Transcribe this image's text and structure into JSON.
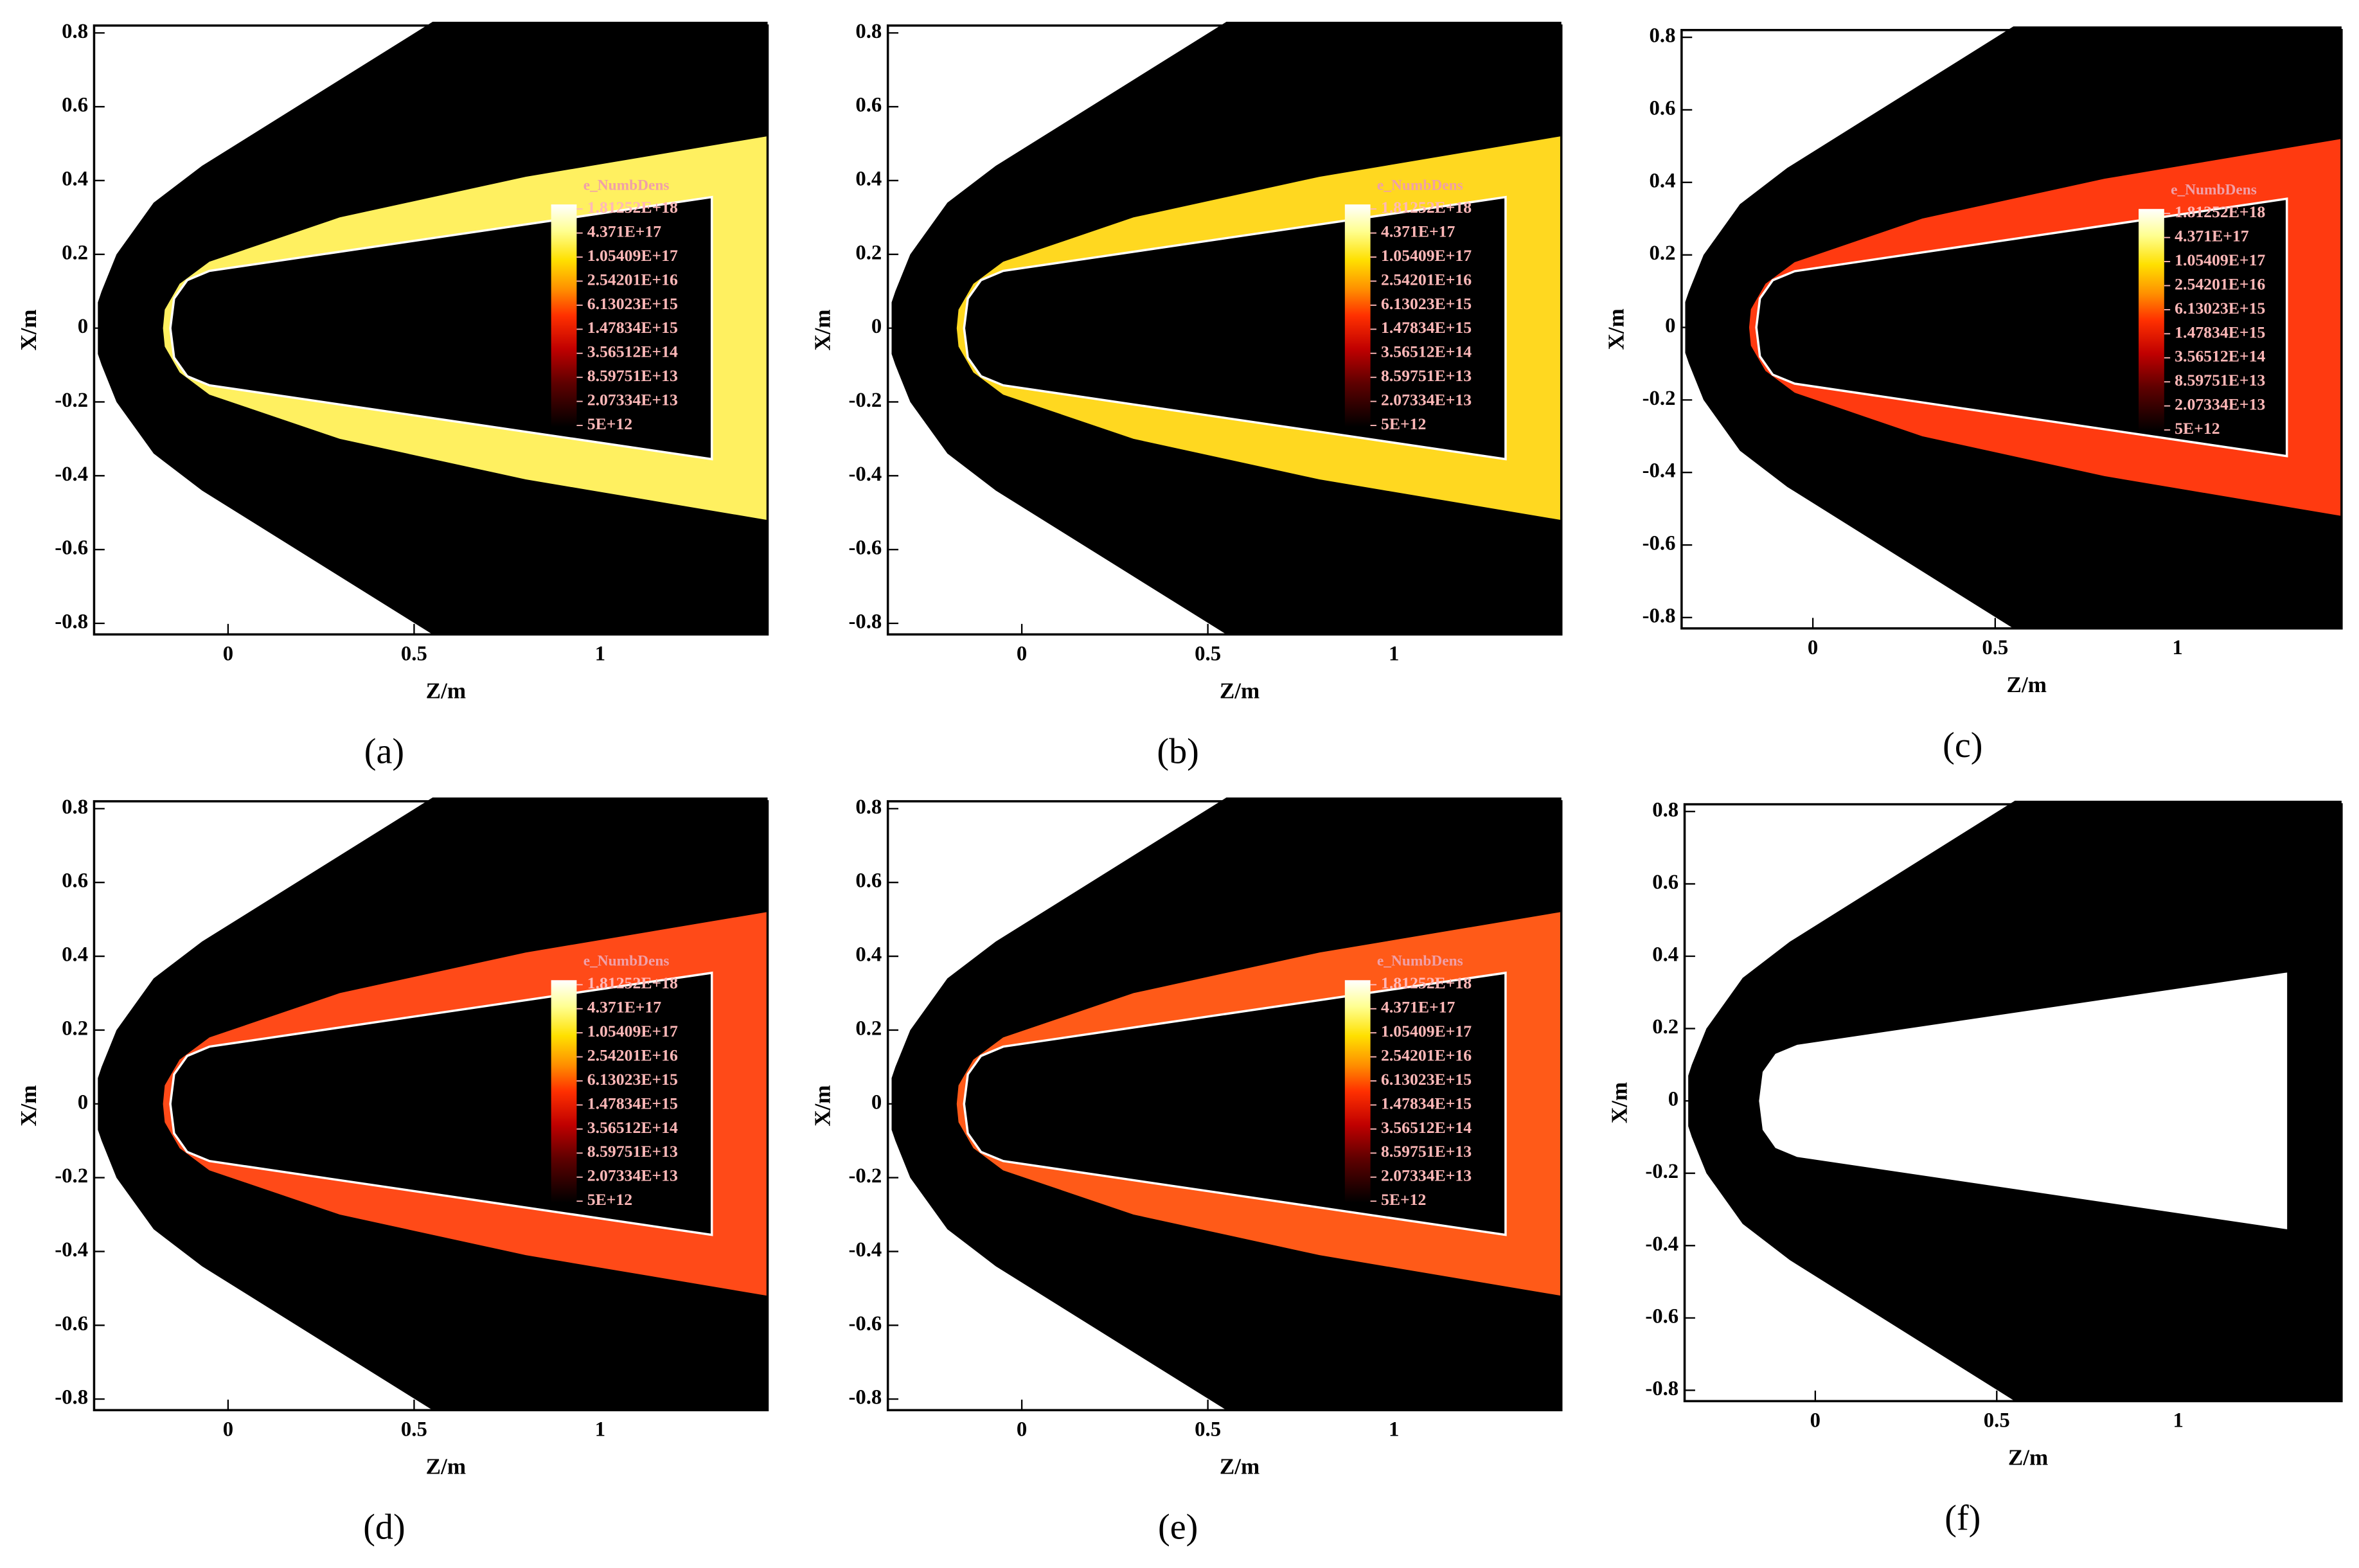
{
  "chart_data": [
    {
      "type": "contour",
      "panel_label": "(a)",
      "xlabel": "Z/m",
      "ylabel": "X/m",
      "xlim": [
        -0.36,
        1.45
      ],
      "ylim": [
        -0.83,
        0.82
      ],
      "xticks": [
        0,
        0.5,
        1
      ],
      "yticks": [
        -0.8,
        -0.6,
        -0.4,
        -0.2,
        0,
        0.2,
        0.4,
        0.6,
        0.8
      ],
      "color": "#fff060",
      "legend_title": "e_NumbDens",
      "levels": [
        {
          "value": 1.81252e+18,
          "label": "1.81252E+18"
        },
        {
          "value": 4.371e+17,
          "label": "4.371E+17"
        },
        {
          "value": 1.05409e+17,
          "label": "1.05409E+17"
        },
        {
          "value": 2.54201e+16,
          "label": "2.54201E+16"
        },
        {
          "value": 6130230000000000.0,
          "label": "6.13023E+15"
        },
        {
          "value": 1478340000000000.0,
          "label": "1.47834E+15"
        },
        {
          "value": 356512000000000.0,
          "label": "3.56512E+14"
        },
        {
          "value": 85975100000000.0,
          "label": "8.59751E+13"
        },
        {
          "value": 20733400000000.0,
          "label": "2.07334E+13"
        },
        {
          "value": 5000000000000.0,
          "label": "5E+12"
        }
      ]
    },
    {
      "type": "contour",
      "panel_label": "(b)",
      "xlabel": "Z/m",
      "ylabel": "X/m",
      "xlim": [
        -0.36,
        1.45
      ],
      "ylim": [
        -0.83,
        0.82
      ],
      "xticks": [
        0,
        0.5,
        1
      ],
      "yticks": [
        -0.8,
        -0.6,
        -0.4,
        -0.2,
        0,
        0.2,
        0.4,
        0.6,
        0.8
      ],
      "color": "#ffd820",
      "legend_title": "e_NumbDens",
      "levels": [
        {
          "value": 1.81252e+18,
          "label": "1.81252E+18"
        },
        {
          "value": 4.371e+17,
          "label": "4.371E+17"
        },
        {
          "value": 1.05409e+17,
          "label": "1.05409E+17"
        },
        {
          "value": 2.54201e+16,
          "label": "2.54201E+16"
        },
        {
          "value": 6130230000000000.0,
          "label": "6.13023E+15"
        },
        {
          "value": 1478340000000000.0,
          "label": "1.47834E+15"
        },
        {
          "value": 356512000000000.0,
          "label": "3.56512E+14"
        },
        {
          "value": 85975100000000.0,
          "label": "8.59751E+13"
        },
        {
          "value": 20733400000000.0,
          "label": "2.07334E+13"
        },
        {
          "value": 5000000000000.0,
          "label": "5E+12"
        }
      ]
    },
    {
      "type": "contour",
      "panel_label": "(c)",
      "xlabel": "Z/m",
      "ylabel": "X/m",
      "xlim": [
        -0.36,
        1.45
      ],
      "ylim": [
        -0.83,
        0.82
      ],
      "xticks": [
        0,
        0.5,
        1
      ],
      "yticks": [
        -0.8,
        -0.6,
        -0.4,
        -0.2,
        0,
        0.2,
        0.4,
        0.6,
        0.8
      ],
      "color": "#ff3a10",
      "legend_title": "e_NumbDens",
      "levels": [
        {
          "value": 1.81252e+18,
          "label": "1.81252E+18"
        },
        {
          "value": 4.371e+17,
          "label": "4.371E+17"
        },
        {
          "value": 1.05409e+17,
          "label": "1.05409E+17"
        },
        {
          "value": 2.54201e+16,
          "label": "2.54201E+16"
        },
        {
          "value": 6130230000000000.0,
          "label": "6.13023E+15"
        },
        {
          "value": 1478340000000000.0,
          "label": "1.47834E+15"
        },
        {
          "value": 356512000000000.0,
          "label": "3.56512E+14"
        },
        {
          "value": 85975100000000.0,
          "label": "8.59751E+13"
        },
        {
          "value": 20733400000000.0,
          "label": "2.07334E+13"
        },
        {
          "value": 5000000000000.0,
          "label": "5E+12"
        }
      ]
    },
    {
      "type": "contour",
      "panel_label": "(d)",
      "xlabel": "Z/m",
      "ylabel": "X/m",
      "xlim": [
        -0.36,
        1.45
      ],
      "ylim": [
        -0.83,
        0.82
      ],
      "xticks": [
        0,
        0.5,
        1
      ],
      "yticks": [
        -0.8,
        -0.6,
        -0.4,
        -0.2,
        0,
        0.2,
        0.4,
        0.6,
        0.8
      ],
      "color": "#ff4a18",
      "legend_title": "e_NumbDens",
      "levels": [
        {
          "value": 1.81252e+18,
          "label": "1.81252E+18"
        },
        {
          "value": 4.371e+17,
          "label": "4.371E+17"
        },
        {
          "value": 1.05409e+17,
          "label": "1.05409E+17"
        },
        {
          "value": 2.54201e+16,
          "label": "2.54201E+16"
        },
        {
          "value": 6130230000000000.0,
          "label": "6.13023E+15"
        },
        {
          "value": 1478340000000000.0,
          "label": "1.47834E+15"
        },
        {
          "value": 356512000000000.0,
          "label": "3.56512E+14"
        },
        {
          "value": 85975100000000.0,
          "label": "8.59751E+13"
        },
        {
          "value": 20733400000000.0,
          "label": "2.07334E+13"
        },
        {
          "value": 5000000000000.0,
          "label": "5E+12"
        }
      ]
    },
    {
      "type": "contour",
      "panel_label": "(e)",
      "xlabel": "Z/m",
      "ylabel": "X/m",
      "xlim": [
        -0.36,
        1.45
      ],
      "ylim": [
        -0.83,
        0.82
      ],
      "xticks": [
        0,
        0.5,
        1
      ],
      "yticks": [
        -0.8,
        -0.6,
        -0.4,
        -0.2,
        0,
        0.2,
        0.4,
        0.6,
        0.8
      ],
      "color": "#ff5a18",
      "legend_title": "e_NumbDens",
      "levels": [
        {
          "value": 1.81252e+18,
          "label": "1.81252E+18"
        },
        {
          "value": 4.371e+17,
          "label": "4.371E+17"
        },
        {
          "value": 1.05409e+17,
          "label": "1.05409E+17"
        },
        {
          "value": 2.54201e+16,
          "label": "2.54201E+16"
        },
        {
          "value": 6130230000000000.0,
          "label": "6.13023E+15"
        },
        {
          "value": 1478340000000000.0,
          "label": "1.47834E+15"
        },
        {
          "value": 356512000000000.0,
          "label": "3.56512E+14"
        },
        {
          "value": 85975100000000.0,
          "label": "8.59751E+13"
        },
        {
          "value": 20733400000000.0,
          "label": "2.07334E+13"
        },
        {
          "value": 5000000000000.0,
          "label": "5E+12"
        }
      ]
    },
    {
      "type": "contour",
      "panel_label": "(f)",
      "xlabel": "Z/m",
      "ylabel": "X/m",
      "xlim": [
        -0.36,
        1.45
      ],
      "ylim": [
        -0.83,
        0.82
      ],
      "xticks": [
        0,
        0.5,
        1
      ],
      "yticks": [
        -0.8,
        -0.6,
        -0.4,
        -0.2,
        0,
        0.2,
        0.4,
        0.6,
        0.8
      ]
    }
  ]
}
